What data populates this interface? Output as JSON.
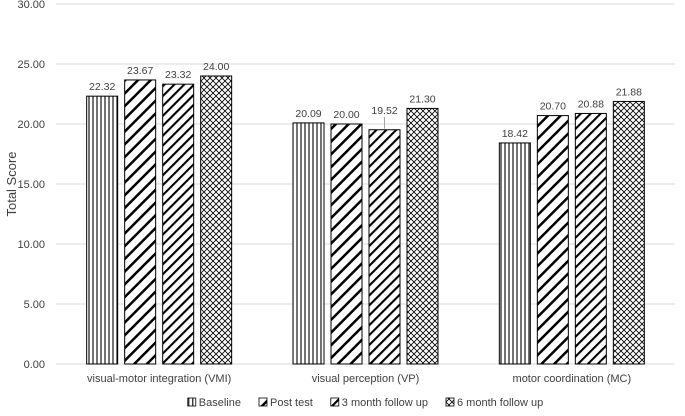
{
  "chart_data": {
    "type": "bar",
    "title": "",
    "xlabel": "",
    "ylabel": "Total Score",
    "ylim": [
      0,
      30
    ],
    "ytick_step": 5,
    "ytick_labels": [
      "0.00",
      "5.00",
      "10.00",
      "15.00",
      "20.00",
      "25.00",
      "30.00"
    ],
    "grid": "horizontal",
    "legend_position": "bottom",
    "categories": [
      "visual-motor integration (VMI)",
      "visual perception (VP)",
      "motor coordination (MC)"
    ],
    "series": [
      {
        "name": "Baseline",
        "pattern": "vertical-lines",
        "values": [
          22.32,
          20.09,
          18.42
        ],
        "labels": [
          "22.32",
          "20.09",
          "18.42"
        ]
      },
      {
        "name": "Post test",
        "pattern": "wide-diagonal",
        "values": [
          23.67,
          20.0,
          20.7
        ],
        "labels": [
          "23.67",
          "20.00",
          "20.70"
        ]
      },
      {
        "name": "3 month follow up",
        "pattern": "dense-diagonal",
        "values": [
          23.32,
          19.52,
          20.88
        ],
        "labels": [
          "23.32",
          "19.52",
          "20.88"
        ]
      },
      {
        "name": "6 month follow up",
        "pattern": "crosshatch",
        "values": [
          24.0,
          21.3,
          21.88
        ],
        "labels": [
          "24.00",
          "21.30",
          "21.88"
        ]
      }
    ],
    "colors": {
      "stroke": "#000000",
      "fill": "#ffffff",
      "grid": "#d9d9d9",
      "text": "#404040"
    }
  }
}
